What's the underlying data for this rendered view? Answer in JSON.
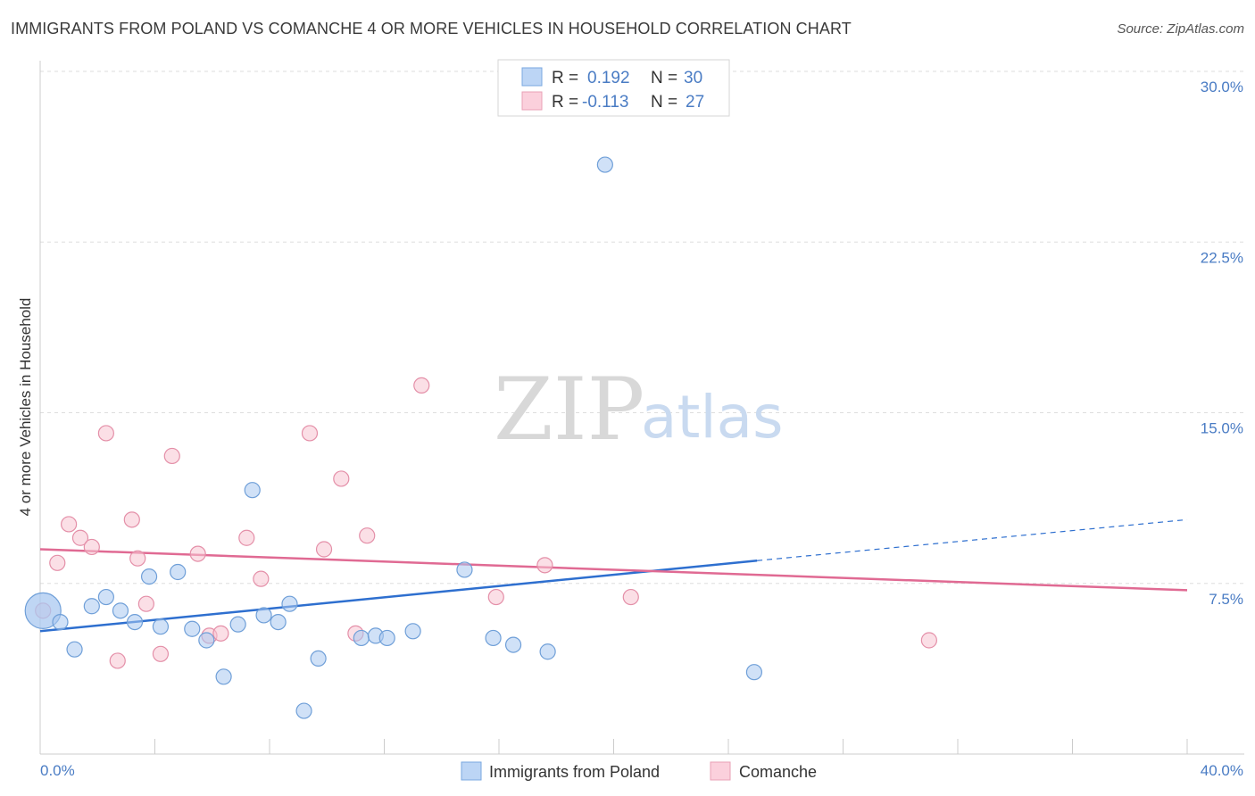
{
  "title": "IMMIGRANTS FROM POLAND VS COMANCHE 4 OR MORE VEHICLES IN HOUSEHOLD CORRELATION CHART",
  "source": "Source: ZipAtlas.com",
  "watermark": {
    "zip": "ZIP",
    "atlas": "atlas"
  },
  "legend": {
    "r_label": "R =",
    "n_label": "N =",
    "series": [
      {
        "r": "0.192",
        "n": "30"
      },
      {
        "r": "-0.113",
        "n": "27"
      }
    ]
  },
  "chart_data": {
    "type": "scatter",
    "ylabel": "4 or more Vehicles in Household",
    "xlim": [
      0,
      40
    ],
    "ylim": [
      0,
      30
    ],
    "x_ticks": [
      {
        "value": 0,
        "label": "0.0%"
      },
      {
        "value": 40,
        "label": "40.0%"
      }
    ],
    "y_ticks": [
      {
        "value": 7.5,
        "label": "7.5%"
      },
      {
        "value": 15,
        "label": "15.0%"
      },
      {
        "value": 22.5,
        "label": "22.5%"
      },
      {
        "value": 30,
        "label": "30.0%"
      }
    ],
    "grid": true,
    "legend_position": "top-center",
    "series": [
      {
        "name": "Immigrants from Poland",
        "color": "#a9c8f0",
        "stroke": "#6f9fd8",
        "line_color": "#2e6fcf",
        "r": 0.192,
        "n": 30,
        "trend": {
          "x0": 0,
          "y0": 5.4,
          "x1": 25,
          "y1": 8.5,
          "x_end": 40,
          "y_end": 10.3
        },
        "points": [
          {
            "x": 0.1,
            "y": 6.3,
            "big": true
          },
          {
            "x": 0.7,
            "y": 5.8
          },
          {
            "x": 1.2,
            "y": 4.6
          },
          {
            "x": 1.8,
            "y": 6.5
          },
          {
            "x": 2.3,
            "y": 6.9
          },
          {
            "x": 2.8,
            "y": 6.3
          },
          {
            "x": 3.3,
            "y": 5.8
          },
          {
            "x": 3.8,
            "y": 7.8
          },
          {
            "x": 4.2,
            "y": 5.6
          },
          {
            "x": 4.8,
            "y": 8.0
          },
          {
            "x": 5.3,
            "y": 5.5
          },
          {
            "x": 5.8,
            "y": 5.0
          },
          {
            "x": 6.4,
            "y": 3.4
          },
          {
            "x": 6.9,
            "y": 5.7
          },
          {
            "x": 7.4,
            "y": 11.6
          },
          {
            "x": 7.8,
            "y": 6.1
          },
          {
            "x": 8.3,
            "y": 5.8
          },
          {
            "x": 8.7,
            "y": 6.6
          },
          {
            "x": 9.2,
            "y": 1.9
          },
          {
            "x": 9.7,
            "y": 4.2
          },
          {
            "x": 11.2,
            "y": 5.1
          },
          {
            "x": 11.7,
            "y": 5.2
          },
          {
            "x": 12.1,
            "y": 5.1
          },
          {
            "x": 13.0,
            "y": 5.4
          },
          {
            "x": 14.8,
            "y": 8.1
          },
          {
            "x": 15.8,
            "y": 5.1
          },
          {
            "x": 16.5,
            "y": 4.8
          },
          {
            "x": 17.7,
            "y": 4.5
          },
          {
            "x": 19.7,
            "y": 25.9
          },
          {
            "x": 24.9,
            "y": 3.6
          }
        ]
      },
      {
        "name": "Comanche",
        "color": "#f8c4d2",
        "stroke": "#e48fa8",
        "line_color": "#e06a93",
        "r": -0.113,
        "n": 27,
        "trend": {
          "x0": 0,
          "y0": 9.0,
          "x1": 40,
          "y1": 7.2
        },
        "points": [
          {
            "x": 0.1,
            "y": 6.3
          },
          {
            "x": 0.6,
            "y": 8.4
          },
          {
            "x": 1.0,
            "y": 10.1
          },
          {
            "x": 1.4,
            "y": 9.5
          },
          {
            "x": 1.8,
            "y": 9.1
          },
          {
            "x": 2.3,
            "y": 14.1
          },
          {
            "x": 2.7,
            "y": 4.1
          },
          {
            "x": 3.2,
            "y": 10.3
          },
          {
            "x": 3.4,
            "y": 8.6
          },
          {
            "x": 3.7,
            "y": 6.6
          },
          {
            "x": 4.2,
            "y": 4.4
          },
          {
            "x": 4.6,
            "y": 13.1
          },
          {
            "x": 5.5,
            "y": 8.8
          },
          {
            "x": 5.9,
            "y": 5.2
          },
          {
            "x": 6.3,
            "y": 5.3
          },
          {
            "x": 7.2,
            "y": 9.5
          },
          {
            "x": 7.7,
            "y": 7.7
          },
          {
            "x": 9.4,
            "y": 14.1
          },
          {
            "x": 9.9,
            "y": 9.0
          },
          {
            "x": 10.5,
            "y": 12.1
          },
          {
            "x": 11.0,
            "y": 5.3
          },
          {
            "x": 11.4,
            "y": 9.6
          },
          {
            "x": 13.3,
            "y": 16.2
          },
          {
            "x": 15.9,
            "y": 6.9
          },
          {
            "x": 17.6,
            "y": 8.3
          },
          {
            "x": 20.6,
            "y": 6.9
          },
          {
            "x": 31.0,
            "y": 5.0
          }
        ]
      }
    ]
  }
}
